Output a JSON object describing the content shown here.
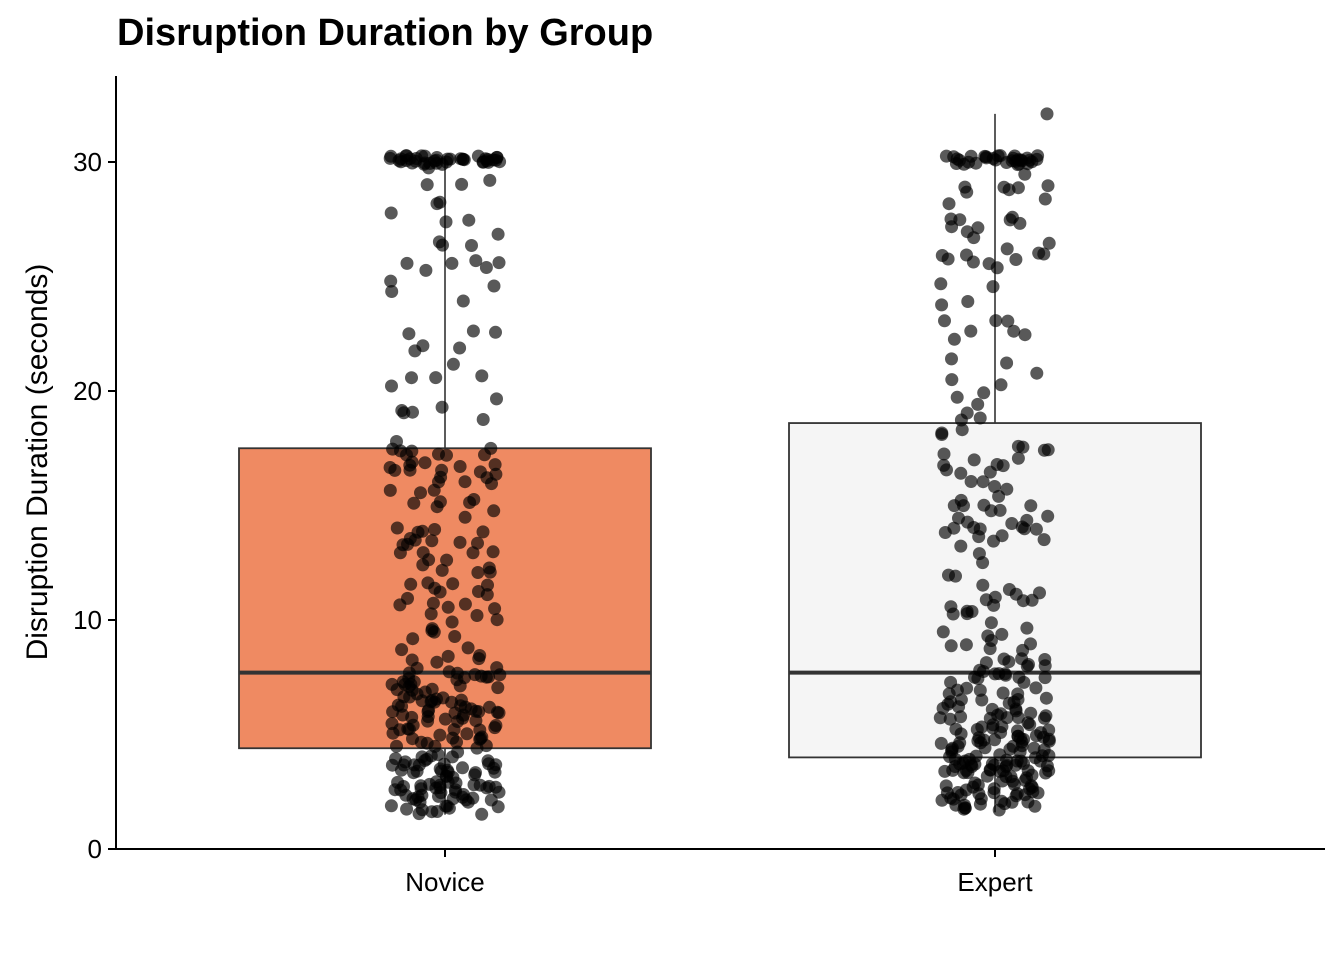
{
  "chart_data": {
    "type": "box",
    "title": "Disruption Duration by Group",
    "xlabel": "",
    "ylabel": "Disruption Duration (seconds)",
    "ylim": [
      0,
      33.5
    ],
    "yticks": [
      0,
      10,
      20,
      30
    ],
    "grid": false,
    "legend": "none",
    "categories": [
      "Novice",
      "Expert"
    ],
    "boxes": [
      {
        "name": "Novice",
        "q1": 4.4,
        "median": 7.7,
        "q3": 17.5,
        "whisker_low": 1.5,
        "whisker_high": 30.2,
        "fill": "#ef8a62"
      },
      {
        "name": "Expert",
        "q1": 4.0,
        "median": 7.7,
        "q3": 18.6,
        "whisker_low": 1.6,
        "whisker_high": 32.1,
        "fill": "#f5f5f5"
      }
    ],
    "jitter_points_per_group": 330,
    "point_color": "#000000",
    "point_opacity": 0.65
  }
}
